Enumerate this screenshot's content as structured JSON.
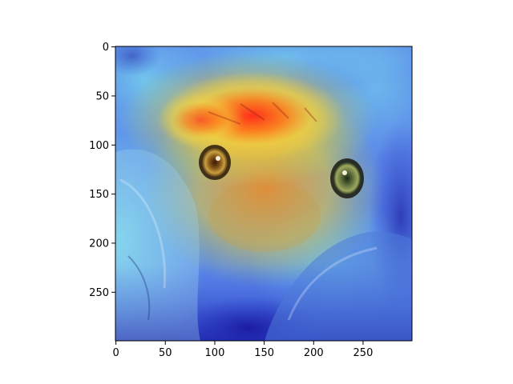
{
  "figure": {
    "image_subject": "dog face with attention heatmap overlay",
    "colormap": "jet",
    "background": "#ffffff"
  },
  "axes": {
    "x_range": [
      0,
      299
    ],
    "y_range": [
      0,
      299
    ],
    "y_inverted": true,
    "grid": false,
    "x_ticks": [
      {
        "value": 0,
        "label": "0"
      },
      {
        "value": 50,
        "label": "50"
      },
      {
        "value": 100,
        "label": "100"
      },
      {
        "value": 150,
        "label": "150"
      },
      {
        "value": 200,
        "label": "200"
      },
      {
        "value": 250,
        "label": "250"
      }
    ],
    "y_ticks": [
      {
        "value": 0,
        "label": "0"
      },
      {
        "value": 50,
        "label": "50"
      },
      {
        "value": 100,
        "label": "100"
      },
      {
        "value": 150,
        "label": "150"
      },
      {
        "value": 200,
        "label": "200"
      },
      {
        "value": 250,
        "label": "250"
      }
    ]
  }
}
